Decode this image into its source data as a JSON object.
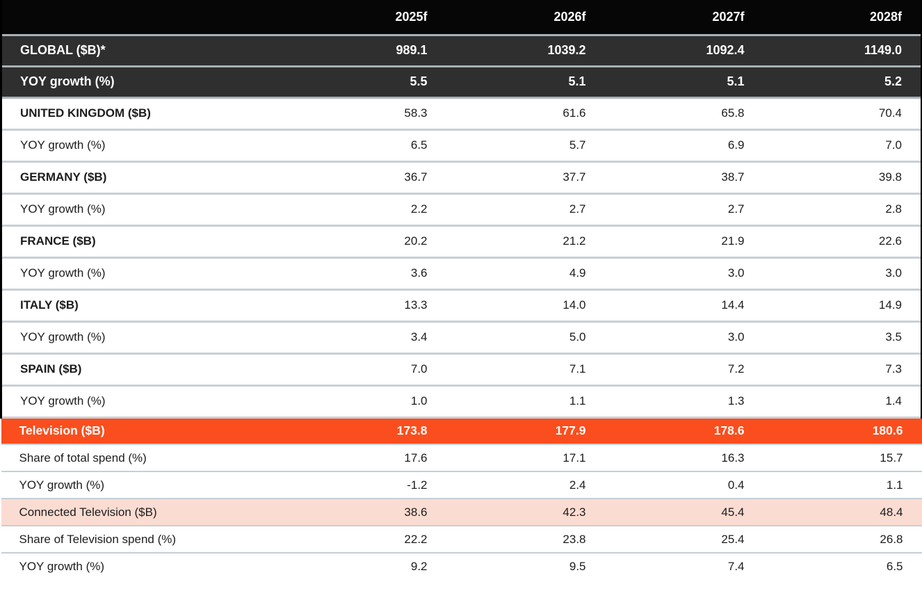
{
  "colors": {
    "header_bg": "#060606",
    "dark_row_bg": "#2f2f2f",
    "orange_row_bg": "#fb4e1e",
    "pink_row_bg": "#fbdcd2",
    "divider_dark": "#a7b1b8",
    "divider_light": "#c6cfd6",
    "text_dark": "#1c1c1c",
    "text_white": "#ffffff",
    "side_border": "#000000"
  },
  "chart_data": {
    "type": "table",
    "columns": [
      "",
      "2025f",
      "2026f",
      "2027f",
      "2028f"
    ],
    "rows": [
      {
        "label": "GLOBAL ($B)*",
        "values": [
          "989.1",
          "1039.2",
          "1092.4",
          "1149.0"
        ],
        "style": "dark"
      },
      {
        "label": "YOY growth (%)",
        "values": [
          "5.5",
          "5.1",
          "5.1",
          "5.2"
        ],
        "style": "dark"
      },
      {
        "label": "UNITED KINGDOM ($B)",
        "values": [
          "58.3",
          "61.6",
          "65.8",
          "70.4"
        ],
        "style": "country"
      },
      {
        "label": "YOY growth (%)",
        "values": [
          "6.5",
          "5.7",
          "6.9",
          "7.0"
        ],
        "style": "plain"
      },
      {
        "label": "GERMANY ($B)",
        "values": [
          "36.7",
          "37.7",
          "38.7",
          "39.8"
        ],
        "style": "country"
      },
      {
        "label": "YOY growth (%)",
        "values": [
          "2.2",
          "2.7",
          "2.7",
          "2.8"
        ],
        "style": "plain"
      },
      {
        "label": "FRANCE ($B)",
        "values": [
          "20.2",
          "21.2",
          "21.9",
          "22.6"
        ],
        "style": "country"
      },
      {
        "label": "YOY growth (%)",
        "values": [
          "3.6",
          "4.9",
          "3.0",
          "3.0"
        ],
        "style": "plain"
      },
      {
        "label": "ITALY ($B)",
        "values": [
          "13.3",
          "14.0",
          "14.4",
          "14.9"
        ],
        "style": "country"
      },
      {
        "label": "YOY growth (%)",
        "values": [
          "3.4",
          "5.0",
          "3.0",
          "3.5"
        ],
        "style": "plain"
      },
      {
        "label": "SPAIN ($B)",
        "values": [
          "7.0",
          "7.1",
          "7.2",
          "7.3"
        ],
        "style": "country"
      },
      {
        "label": "YOY growth (%)",
        "values": [
          "1.0",
          "1.1",
          "1.3",
          "1.4"
        ],
        "style": "plain"
      },
      {
        "label": "Television ($B)",
        "values": [
          "173.8",
          "177.9",
          "178.6",
          "180.6"
        ],
        "style": "orange"
      },
      {
        "label": "Share of total spend (%)",
        "values": [
          "17.6",
          "17.1",
          "16.3",
          "15.7"
        ],
        "style": "plain-compact"
      },
      {
        "label": "YOY growth (%)",
        "values": [
          "-1.2",
          "2.4",
          "0.4",
          "1.1"
        ],
        "style": "plain-compact"
      },
      {
        "label": "Connected Television ($B)",
        "values": [
          "38.6",
          "42.3",
          "45.4",
          "48.4"
        ],
        "style": "pink"
      },
      {
        "label": "Share of Television spend (%)",
        "values": [
          "22.2",
          "23.8",
          "25.4",
          "26.8"
        ],
        "style": "plain-compact"
      },
      {
        "label": "YOY growth (%)",
        "values": [
          "9.2",
          "9.5",
          "7.4",
          "6.5"
        ],
        "style": "plain-compact"
      }
    ]
  }
}
